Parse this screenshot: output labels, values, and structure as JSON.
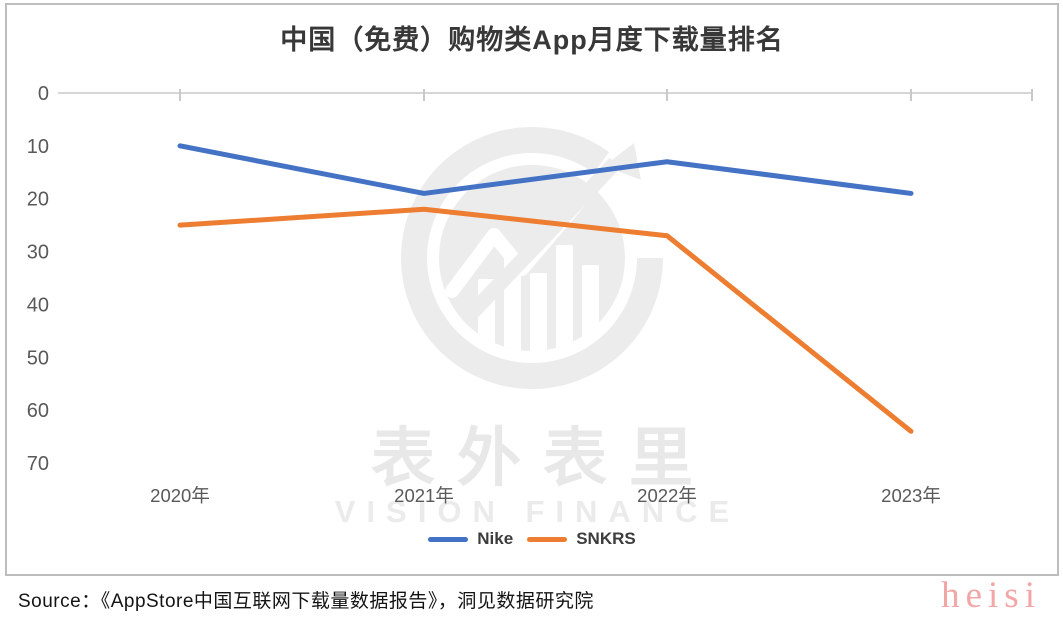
{
  "chart_data": {
    "type": "line",
    "title": "中国（免费）购物类App月度下载量排名",
    "x": [
      "2020年",
      "2021年",
      "2022年",
      "2023年"
    ],
    "series": [
      {
        "name": "Nike",
        "color": "#4472C4",
        "values": [
          10,
          19,
          13,
          19
        ]
      },
      {
        "name": "SNKRS",
        "color": "#ED7D31",
        "values": [
          25,
          22,
          27,
          64
        ]
      }
    ],
    "y_axis": {
      "ticks": [
        0,
        10,
        20,
        30,
        40,
        50,
        60,
        70
      ],
      "min": 0,
      "max": 70,
      "inverted": true,
      "position": "left"
    },
    "x_axis_position": "top",
    "grid": false,
    "legend_position": "bottom",
    "axis_line_color": "#d6d6d6",
    "axis_label_color": "#595959"
  },
  "watermark": {
    "brand_cn": "表外表里",
    "brand_en": "VISION FINANCE",
    "logo": "circular-chart-arrow-logo",
    "color": "#e9e9e9"
  },
  "footer": {
    "source": "Source：《AppStore中国互联网下载量数据报告》，洞见数据研究院",
    "watermark": "heisi",
    "watermark_color": "#f2a6a6"
  }
}
